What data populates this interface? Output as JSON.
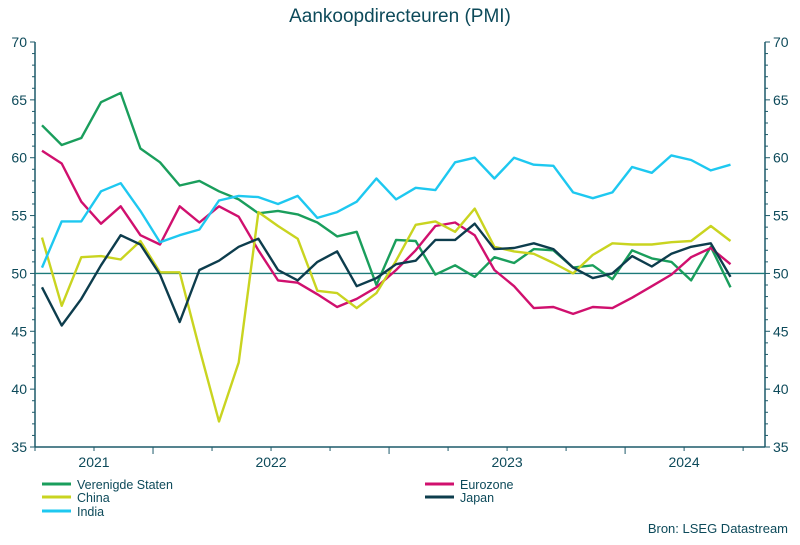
{
  "chart_data": {
    "type": "line",
    "title": "Aankoopdirecteuren (PMI)",
    "source": "Bron: LSEG Datastream",
    "xlabel": "",
    "ylabel": "",
    "ylim": [
      35,
      70
    ],
    "yticks": [
      35,
      40,
      45,
      50,
      55,
      60,
      65,
      70
    ],
    "reference_line": 50,
    "x_start": "2021-07",
    "x_end": "2024-06",
    "x_tick_labels": [
      "2021",
      "2022",
      "2023",
      "2024"
    ],
    "legend_position": "bottom",
    "grid": false,
    "x": [
      "2021-07",
      "2021-08",
      "2021-09",
      "2021-10",
      "2021-11",
      "2021-12",
      "2022-01",
      "2022-02",
      "2022-03",
      "2022-04",
      "2022-05",
      "2022-06",
      "2022-07",
      "2022-08",
      "2022-09",
      "2022-10",
      "2022-11",
      "2022-12",
      "2023-01",
      "2023-02",
      "2023-03",
      "2023-04",
      "2023-05",
      "2023-06",
      "2023-07",
      "2023-08",
      "2023-09",
      "2023-10",
      "2023-11",
      "2023-12",
      "2024-01",
      "2024-02",
      "2024-03",
      "2024-04",
      "2024-05",
      "2024-06"
    ],
    "series": [
      {
        "name": "Verenigde Staten",
        "color": "#1a9e5c",
        "values": [
          62.8,
          61.1,
          61.7,
          64.8,
          65.6,
          60.8,
          59.6,
          57.6,
          58.0,
          57.1,
          56.4,
          55.2,
          55.4,
          55.1,
          54.4,
          53.2,
          53.6,
          49.0,
          52.9,
          52.8,
          49.9,
          50.7,
          49.7,
          51.4,
          50.9,
          52.1,
          52.0,
          50.5,
          50.7,
          49.5,
          52.0,
          51.3,
          51.0,
          49.4,
          52.3,
          48.8
        ]
      },
      {
        "name": "Eurozone",
        "color": "#d0106e",
        "values": [
          60.6,
          59.5,
          56.2,
          54.3,
          55.8,
          53.3,
          52.5,
          55.8,
          54.4,
          55.8,
          54.9,
          52.0,
          49.4,
          49.2,
          48.2,
          47.1,
          47.8,
          48.8,
          50.3,
          52.0,
          54.1,
          54.4,
          53.3,
          50.3,
          48.9,
          47.0,
          47.1,
          46.5,
          47.1,
          47.0,
          47.9,
          48.9,
          49.9,
          51.4,
          52.2,
          50.8
        ]
      },
      {
        "name": "China",
        "color": "#c9d420",
        "values": [
          53.1,
          47.2,
          51.4,
          51.5,
          51.2,
          52.8,
          50.1,
          50.1,
          43.5,
          37.2,
          42.3,
          55.3,
          54.1,
          53.0,
          48.5,
          48.3,
          47.0,
          48.3,
          51.1,
          54.2,
          54.5,
          53.6,
          55.6,
          52.3,
          51.9,
          51.7,
          50.9,
          50.0,
          51.6,
          52.6,
          52.5,
          52.5,
          52.7,
          52.8,
          54.1,
          52.8
        ]
      },
      {
        "name": "Japan",
        "color": "#0d3d4d",
        "values": [
          48.8,
          45.5,
          47.8,
          50.7,
          53.3,
          52.5,
          49.9,
          45.8,
          50.3,
          51.1,
          52.3,
          53.0,
          50.3,
          49.4,
          51.0,
          51.9,
          48.9,
          49.6,
          50.8,
          51.1,
          52.9,
          52.9,
          54.3,
          52.1,
          52.2,
          52.6,
          52.1,
          50.5,
          49.6,
          50.0,
          51.5,
          50.6,
          51.7,
          52.3,
          52.6,
          49.7
        ]
      },
      {
        "name": "India",
        "color": "#1ec8f0",
        "values": [
          50.5,
          54.5,
          54.5,
          57.1,
          57.8,
          55.4,
          52.7,
          53.3,
          53.8,
          56.3,
          56.7,
          56.6,
          56.0,
          56.7,
          54.8,
          55.3,
          56.2,
          58.2,
          56.4,
          57.4,
          57.2,
          59.6,
          60.0,
          58.2,
          60.0,
          59.4,
          59.3,
          57.0,
          56.5,
          57.0,
          59.2,
          58.7,
          60.2,
          59.8,
          58.9,
          59.4
        ]
      }
    ]
  }
}
